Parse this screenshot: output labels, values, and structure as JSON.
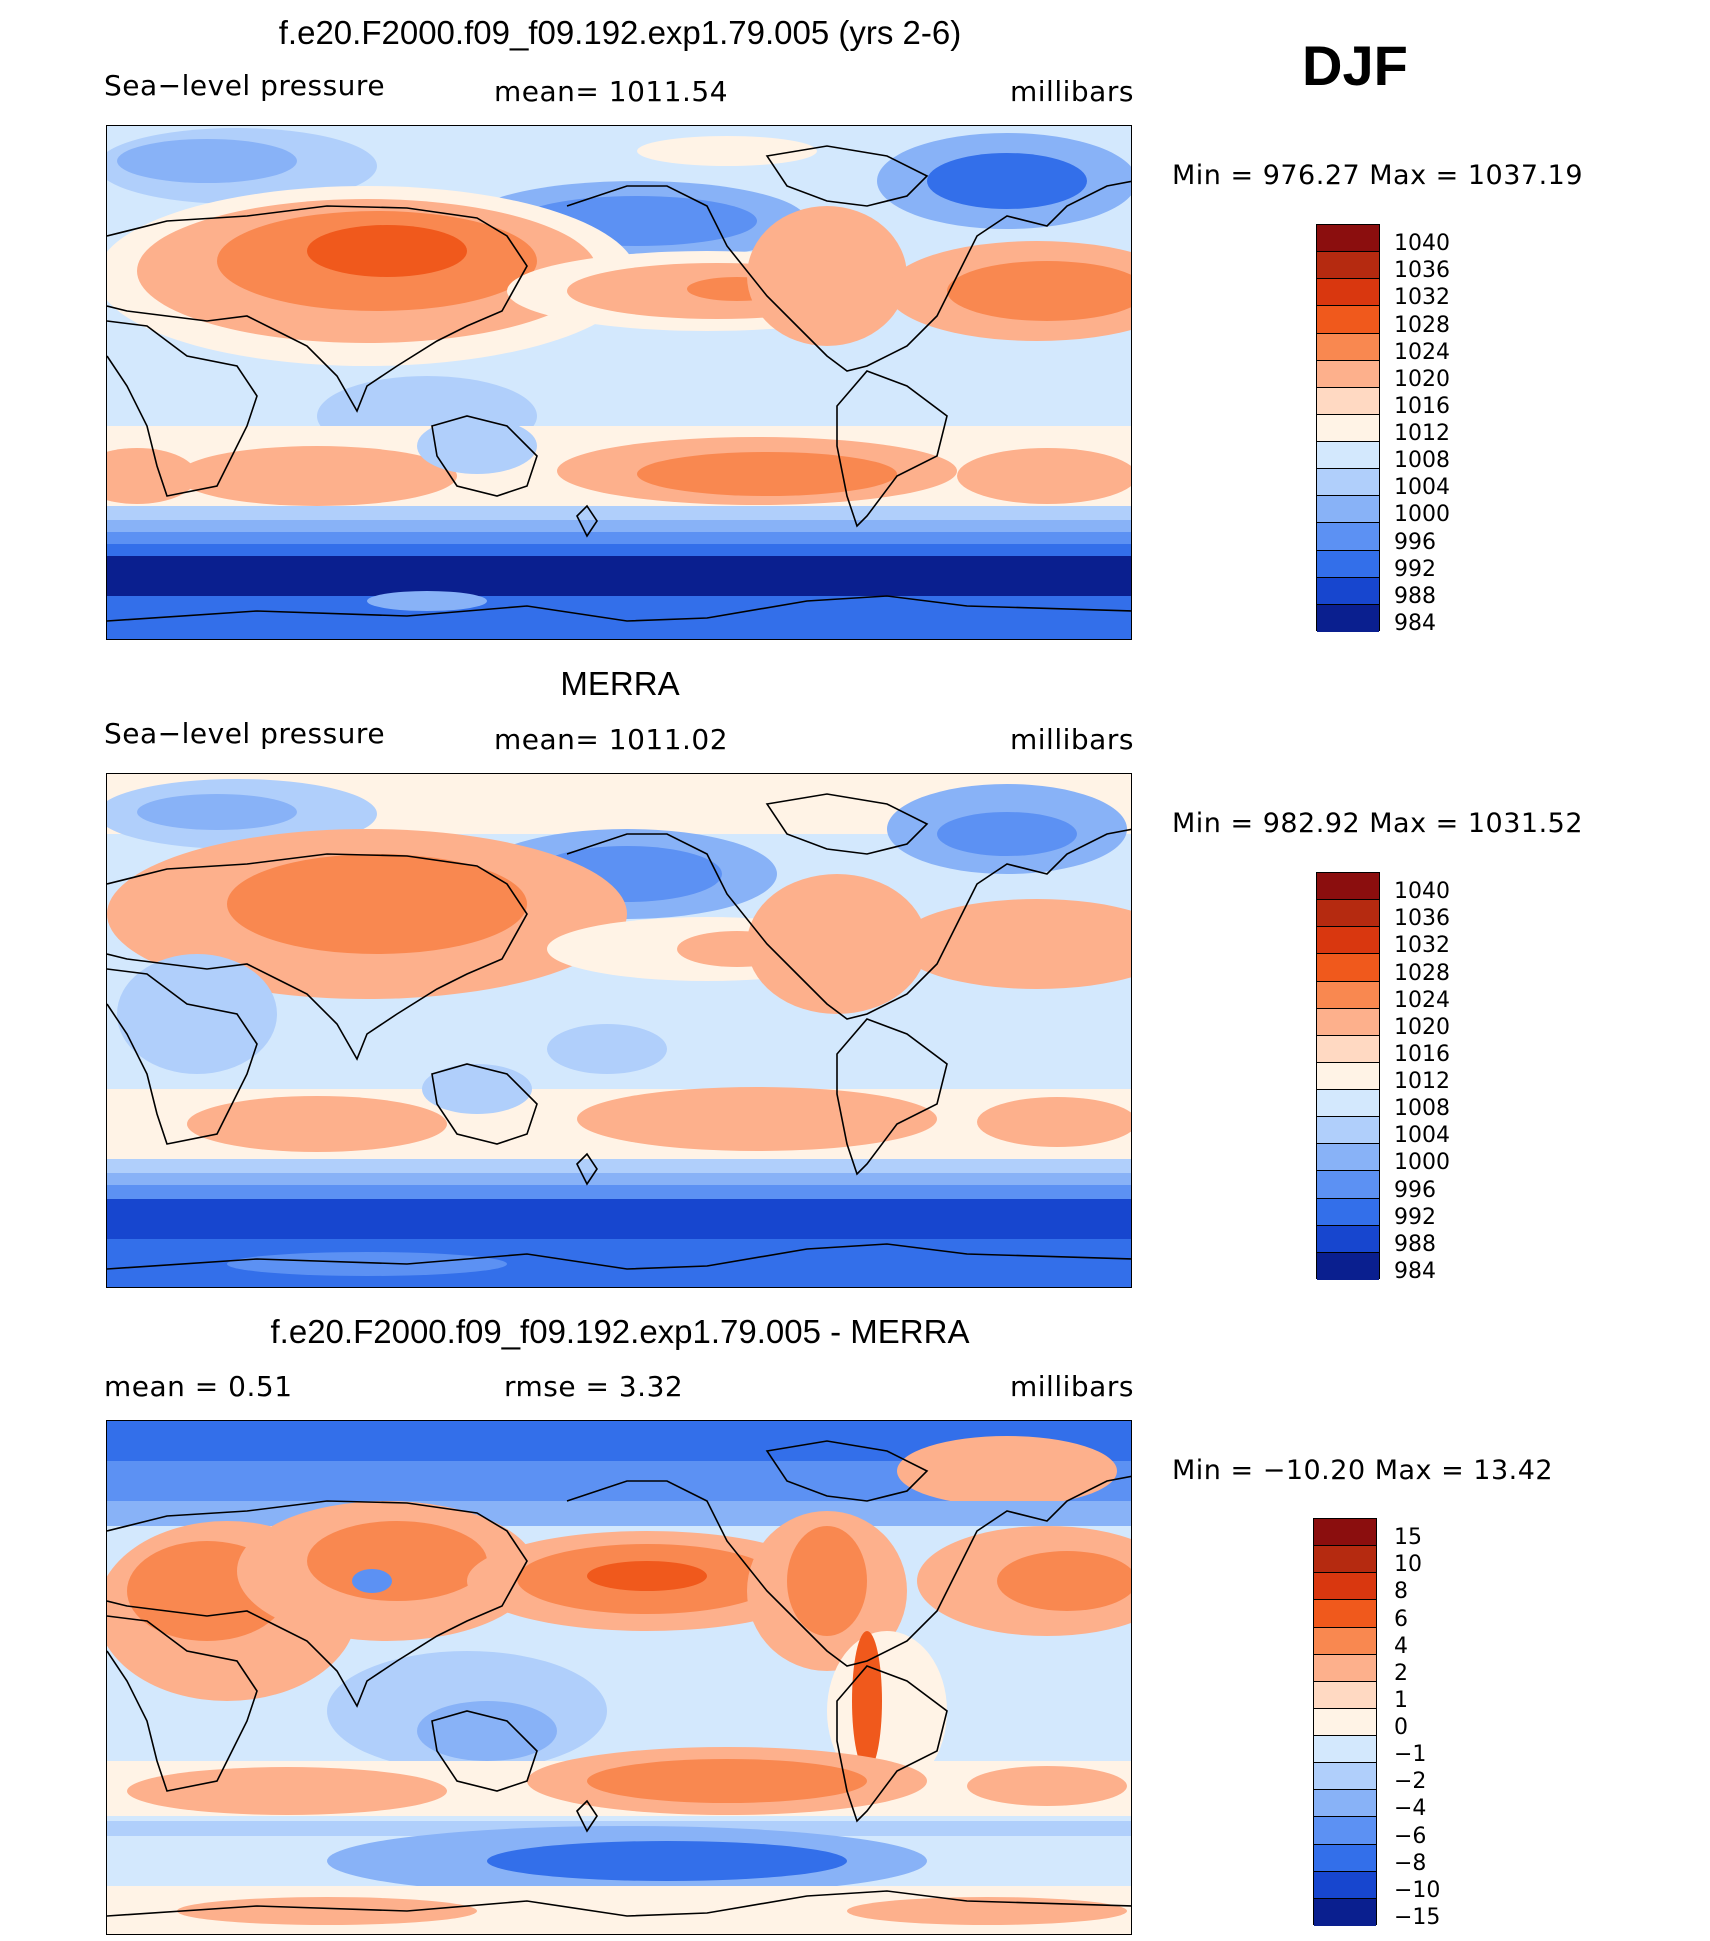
{
  "season": "DJF",
  "chart_data": [
    {
      "type": "heatmap",
      "title": "f.e20.F2000.f09_f09.192.exp1.79.005 (yrs 2-6)",
      "variable": "Sea−level pressure",
      "mean_label": "mean=  1011.54",
      "units": "millibars",
      "min_max": "Min  =  976.27  Max  =  1037.19",
      "colorbar_levels": [
        "1040",
        "1036",
        "1032",
        "1028",
        "1024",
        "1020",
        "1016",
        "1012",
        "1008",
        "1004",
        "1000",
        "996",
        "992",
        "988",
        "984"
      ],
      "colorbar_colors": [
        "#8b0e0e",
        "#b52a10",
        "#d9370f",
        "#f0591c",
        "#f98850",
        "#fdb08c",
        "#ffd9c2",
        "#fff3e6",
        "#d3e8fd",
        "#b0cffb",
        "#88b2f7",
        "#5c91f3",
        "#336fea",
        "#1746cf",
        "#0a1f8f"
      ],
      "projection": "cylindrical, 30E-30E (Pacific centered)"
    },
    {
      "type": "heatmap",
      "title": "MERRA",
      "variable": "Sea−level pressure",
      "mean_label": "mean=  1011.02",
      "units": "millibars",
      "min_max": "Min  =  982.92  Max  =  1031.52",
      "colorbar_levels": [
        "1040",
        "1036",
        "1032",
        "1028",
        "1024",
        "1020",
        "1016",
        "1012",
        "1008",
        "1004",
        "1000",
        "996",
        "992",
        "988",
        "984"
      ],
      "colorbar_colors": [
        "#8b0e0e",
        "#b52a10",
        "#d9370f",
        "#f0591c",
        "#f98850",
        "#fdb08c",
        "#ffd9c2",
        "#fff3e6",
        "#d3e8fd",
        "#b0cffb",
        "#88b2f7",
        "#5c91f3",
        "#336fea",
        "#1746cf",
        "#0a1f8f"
      ],
      "projection": "cylindrical, 30E-30E (Pacific centered)"
    },
    {
      "type": "heatmap",
      "title": "f.e20.F2000.f09_f09.192.exp1.79.005 - MERRA",
      "mean_label": "mean  =     0.51",
      "rmse_label": "rmse  =     3.32",
      "units": "millibars",
      "min_max": "Min  =  −10.20  Max  =    13.42",
      "colorbar_levels": [
        "15",
        "10",
        "8",
        "6",
        "4",
        "2",
        "1",
        "0",
        "−1",
        "−2",
        "−4",
        "−6",
        "−8",
        "−10",
        "−15"
      ],
      "colorbar_colors": [
        "#8b0e0e",
        "#b52a10",
        "#d9370f",
        "#f0591c",
        "#f98850",
        "#fdb08c",
        "#ffd9c2",
        "#fff3e6",
        "#d3e8fd",
        "#b0cffb",
        "#88b2f7",
        "#5c91f3",
        "#336fea",
        "#1746cf",
        "#0a1f8f"
      ],
      "projection": "cylindrical, 30E-30E (Pacific centered)"
    }
  ]
}
